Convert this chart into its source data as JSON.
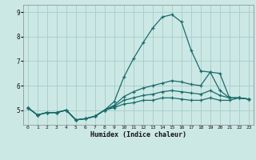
{
  "xlabel": "Humidex (Indice chaleur)",
  "background_color": "#cce8e5",
  "grid_color": "#aad0cc",
  "line_color": "#1a6b6b",
  "xlim": [
    -0.5,
    23.5
  ],
  "ylim": [
    4.4,
    9.3
  ],
  "yticks": [
    5,
    6,
    7,
    8,
    9
  ],
  "xticks": [
    0,
    1,
    2,
    3,
    4,
    5,
    6,
    7,
    8,
    9,
    10,
    11,
    12,
    13,
    14,
    15,
    16,
    17,
    18,
    19,
    20,
    21,
    22,
    23
  ],
  "series": [
    [
      5.1,
      4.8,
      4.9,
      4.9,
      5.0,
      4.6,
      4.65,
      4.75,
      5.0,
      5.35,
      6.35,
      7.1,
      7.75,
      8.35,
      8.8,
      8.9,
      8.6,
      7.45,
      6.6,
      6.55,
      5.8,
      5.5,
      5.5,
      5.45
    ],
    [
      5.1,
      4.8,
      4.9,
      4.9,
      5.0,
      4.6,
      4.65,
      4.75,
      5.0,
      5.2,
      5.55,
      5.75,
      5.9,
      6.0,
      6.1,
      6.2,
      6.15,
      6.05,
      6.0,
      6.55,
      6.5,
      5.5,
      5.5,
      5.45
    ],
    [
      5.1,
      4.8,
      4.9,
      4.9,
      5.0,
      4.6,
      4.65,
      4.75,
      5.0,
      5.15,
      5.4,
      5.5,
      5.6,
      5.65,
      5.75,
      5.8,
      5.75,
      5.7,
      5.65,
      5.8,
      5.6,
      5.5,
      5.5,
      5.45
    ],
    [
      5.1,
      4.8,
      4.9,
      4.9,
      5.0,
      4.6,
      4.65,
      4.75,
      5.0,
      5.1,
      5.25,
      5.3,
      5.4,
      5.4,
      5.5,
      5.5,
      5.45,
      5.4,
      5.4,
      5.5,
      5.4,
      5.4,
      5.5,
      5.45
    ]
  ]
}
